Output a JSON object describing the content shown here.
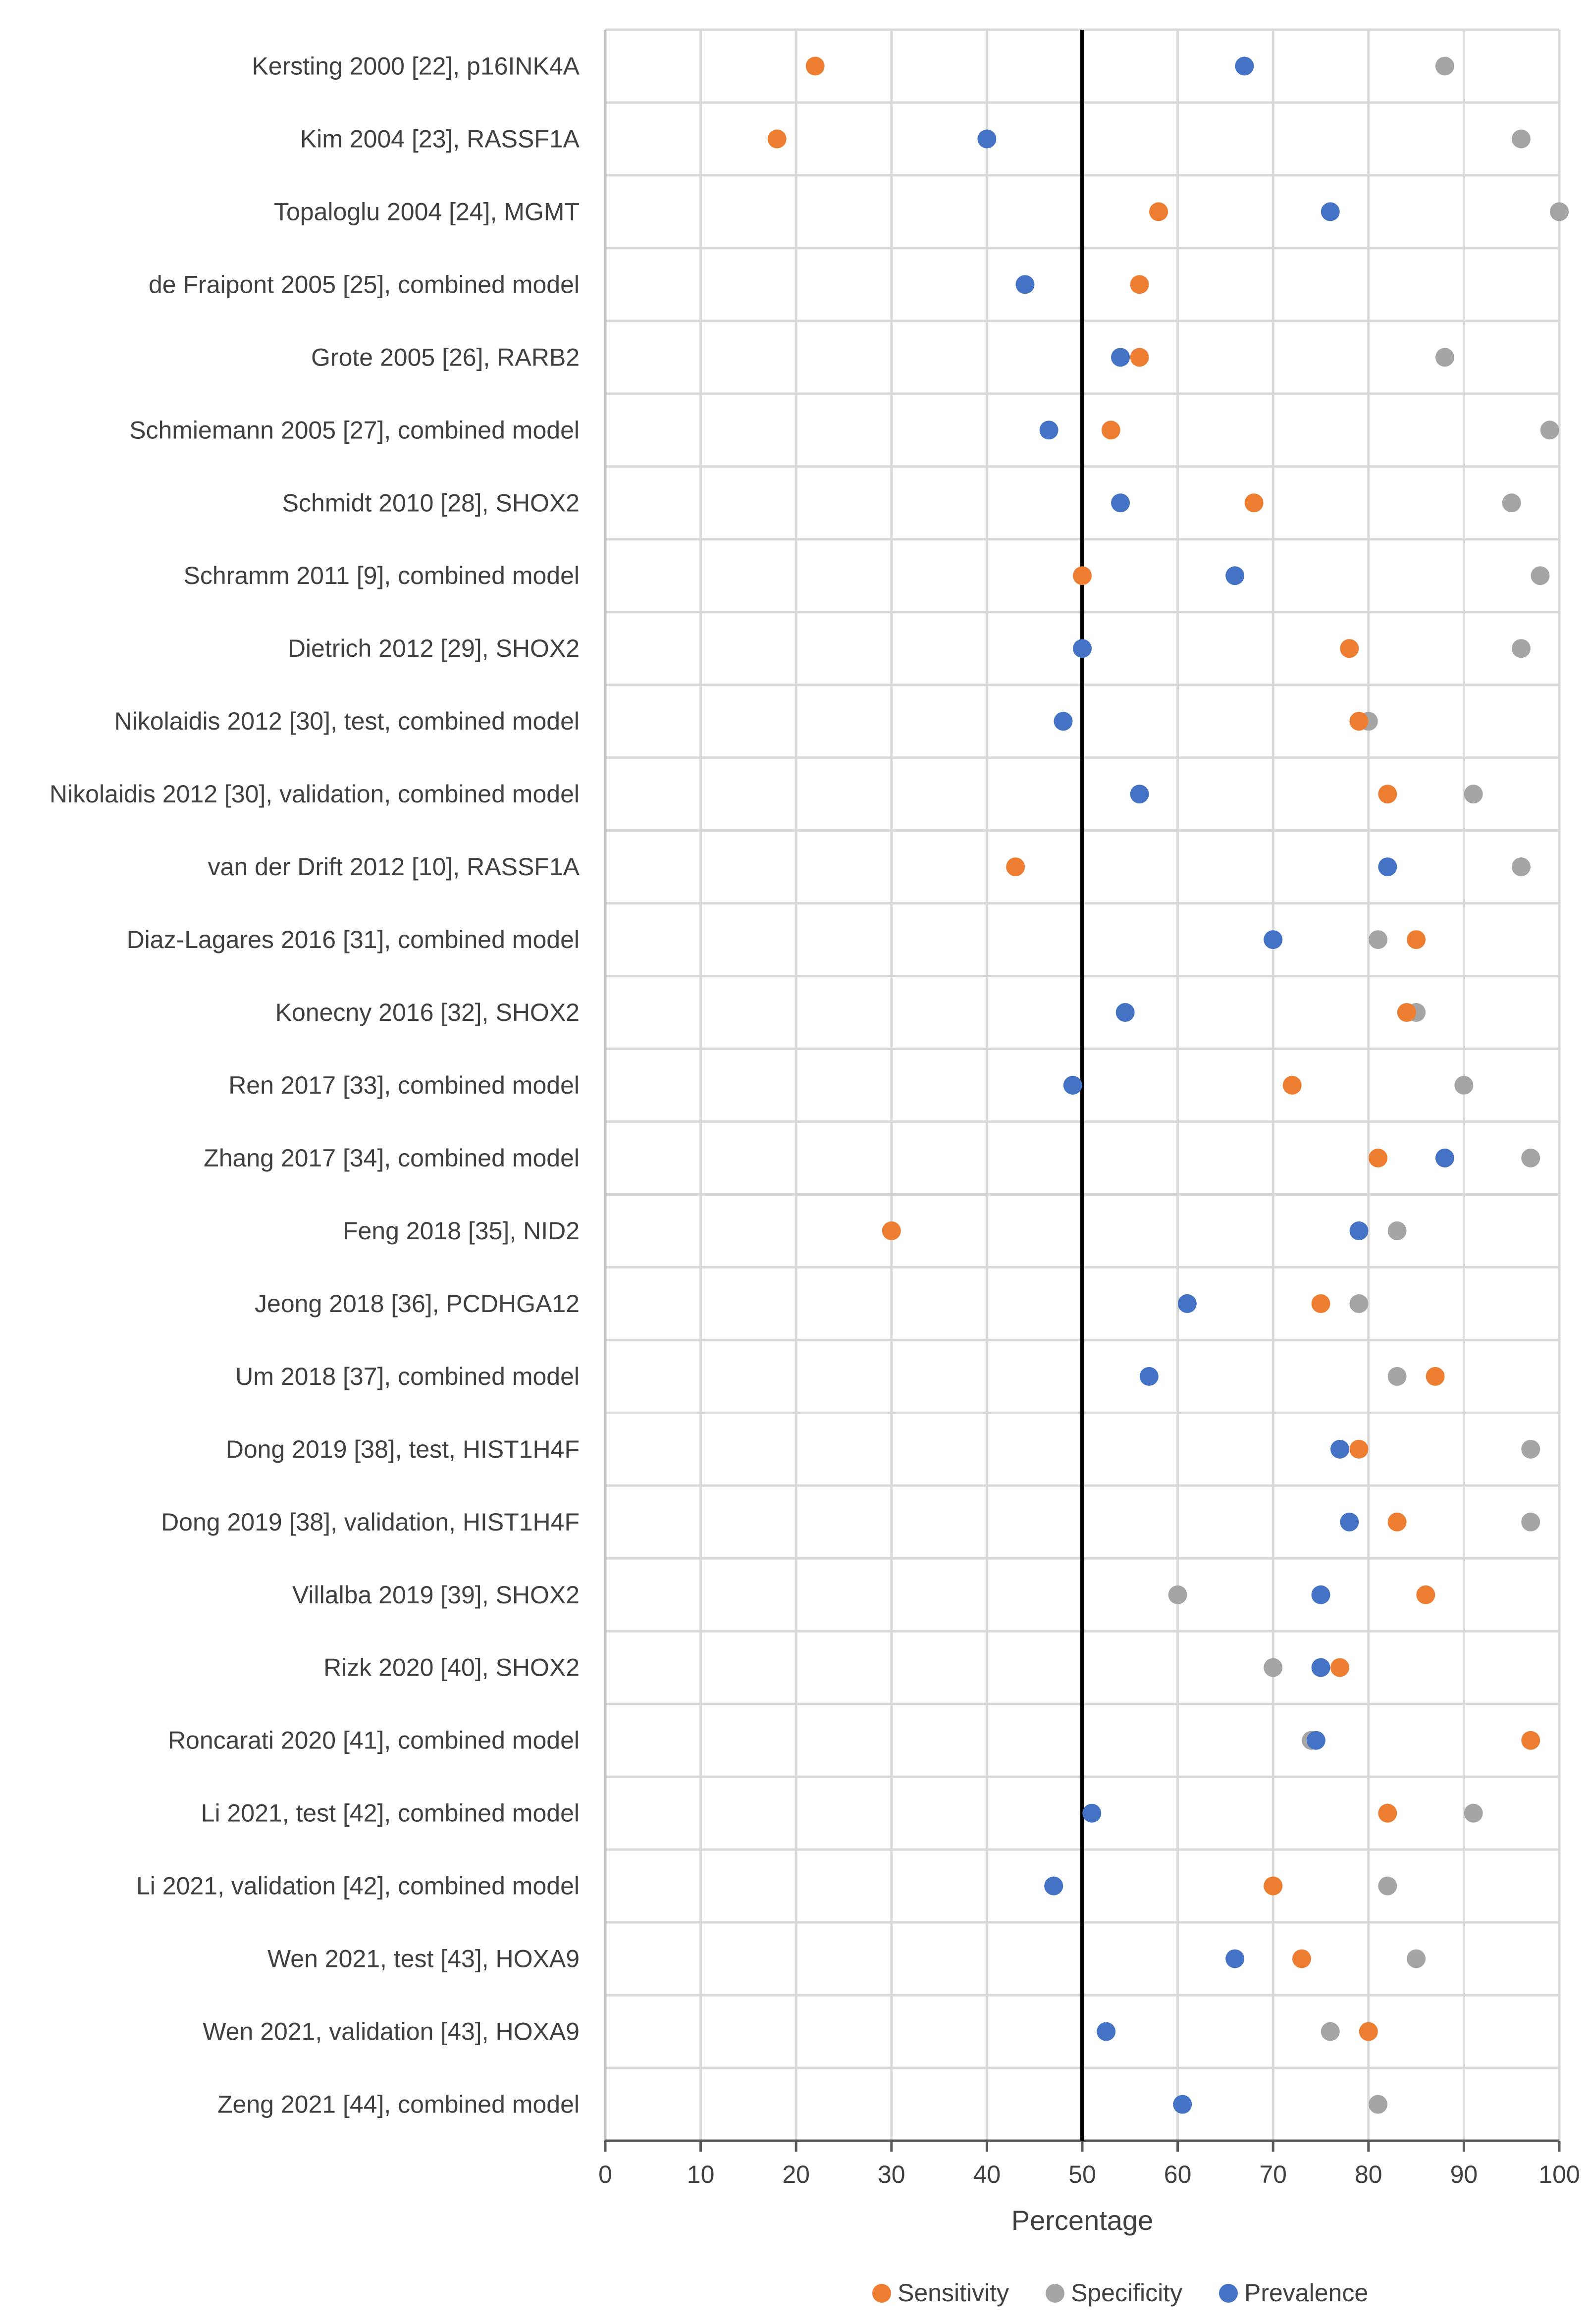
{
  "chart_data": {
    "type": "scatter",
    "orientation": "horizontal-categories",
    "title": "",
    "xlabel": "Percentage",
    "ylabel": "",
    "xlim": [
      0,
      100
    ],
    "xticks": [
      0,
      10,
      20,
      30,
      40,
      50,
      60,
      70,
      80,
      90,
      100
    ],
    "reference_line_x": 50,
    "grid": true,
    "legend_position": "bottom",
    "categories": [
      "Kersting 2000 [22], p16INK4A",
      "Kim 2004 [23], RASSF1A",
      "Topaloglu 2004 [24], MGMT",
      "de Fraipont 2005 [25], combined model",
      "Grote 2005 [26], RARB2",
      "Schmiemann 2005 [27], combined model",
      "Schmidt 2010 [28], SHOX2",
      "Schramm 2011 [9], combined model",
      "Dietrich 2012 [29], SHOX2",
      "Nikolaidis 2012 [30], test, combined model",
      "Nikolaidis 2012 [30], validation, combined model",
      "van der Drift 2012 [10], RASSF1A",
      "Diaz-Lagares 2016 [31], combined model",
      "Konecny 2016 [32], SHOX2",
      "Ren 2017 [33], combined model",
      "Zhang 2017 [34], combined model",
      "Feng 2018 [35], NID2",
      "Jeong 2018 [36], PCDHGA12",
      "Um 2018 [37], combined model",
      "Dong 2019 [38], test, HIST1H4F",
      "Dong 2019 [38], validation, HIST1H4F",
      "Villalba 2019 [39], SHOX2",
      "Rizk 2020 [40], SHOX2",
      "Roncarati 2020 [41], combined model",
      "Li 2021, test [42], combined model",
      "Li 2021, validation [42], combined model",
      "Wen 2021, test [43], HOXA9",
      "Wen 2021, validation [43], HOXA9",
      "Zeng 2021 [44], combined model"
    ],
    "series": [
      {
        "name": "Sensitivity",
        "color": "#ED7D31",
        "values": [
          22,
          18,
          58,
          56,
          56,
          53,
          68,
          50,
          78,
          79,
          82,
          43,
          85,
          84,
          72,
          81,
          30,
          75,
          87,
          79,
          83,
          86,
          77,
          97,
          82,
          70,
          73,
          80,
          null
        ]
      },
      {
        "name": "Specificity",
        "color": "#A5A5A5",
        "values": [
          88,
          96,
          100,
          44,
          88,
          99,
          95,
          98,
          96,
          80,
          91,
          96,
          81,
          85,
          90,
          97,
          83,
          79,
          83,
          97,
          97,
          60,
          70,
          74,
          91,
          82,
          85,
          76,
          81
        ]
      },
      {
        "name": "Prevalence",
        "color": "#4472C4",
        "values": [
          67,
          40,
          76,
          44,
          54,
          46.5,
          54,
          66,
          50,
          48,
          56,
          82,
          70,
          54.5,
          49,
          88,
          79,
          61,
          57,
          77,
          78,
          75,
          75,
          74.5,
          51,
          47,
          66,
          52.5,
          60.5
        ]
      }
    ]
  }
}
